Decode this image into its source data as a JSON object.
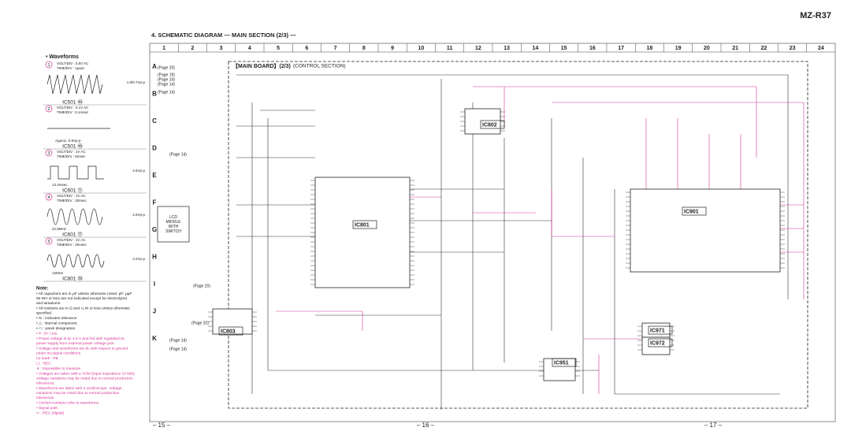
{
  "header": {
    "model": "MZ-R37",
    "title": "4. SCHEMATIC DIAGRAM — MAIN SECTION (2/3) —"
  },
  "board": {
    "title": "【MAIN BOARD】(2/3)",
    "subtitle": "(CONTROL SECTION)"
  },
  "columns": [
    "1",
    "2",
    "3",
    "4",
    "5",
    "6",
    "7",
    "8",
    "9",
    "10",
    "11",
    "12",
    "13",
    "14",
    "15",
    "16",
    "17",
    "18",
    "19",
    "20",
    "21",
    "22",
    "23",
    "24"
  ],
  "rows": [
    "A",
    "B",
    "C",
    "D",
    "E",
    "F",
    "G",
    "H",
    "I",
    "J",
    "K"
  ],
  "waveforms": {
    "title": "• Waveforms",
    "items": [
      {
        "num": "1",
        "volt": "VOLT/DIV : 0.5V AC",
        "time": "TIME/DIV : 1µsec",
        "level": "1.9/0.7Vp-p",
        "ic": "IC501 ㊽"
      },
      {
        "num": "2",
        "volt": "VOLT/DIV : 0.1V AC",
        "time": "TIME/DIV : 0.1msec",
        "level": "Approx. 0.9Vp-p",
        "ic": "IC501 ㊾"
      },
      {
        "num": "3",
        "volt": "VOLT/DIV : 1V AC",
        "time": "TIME/DIV : 5msec",
        "level": "2.6Vp-p",
        "period": "13.4msec",
        "ic": "IC601 ⑪"
      },
      {
        "num": "4",
        "volt": "VOLT/DIV : 1V AC",
        "time": "TIME/DIV : 20nsec",
        "level": "2.6Vp-p",
        "period": "22.5MHz",
        "ic": "IC601 ⑰"
      },
      {
        "num": "5",
        "volt": "VOLT/DIV : 1V AC",
        "time": "TIME/DIV : 20nsec",
        "level": "2.2Vp-p",
        "period": "12MHz",
        "ic": "IC801 ㊿"
      }
    ]
  },
  "notes": {
    "title": "Note:",
    "items": [
      {
        "text": "• All capacitors are in µF unless otherwise noted. pF: µµF 50 WV or less are not indicated except for electrolytics and tantalums.",
        "color": "#222222"
      },
      {
        "text": "• All resistors are in Ω and ¼ W or less unless otherwise specified.",
        "color": "#222222"
      },
      {
        "text": "• % : indicates tolerance.",
        "color": "#222222"
      },
      {
        "text": "• △ : internal component.",
        "color": "#222222"
      },
      {
        "text": "• ▭ : panel designation.",
        "color": "#222222"
      },
      {
        "text": "• ━ : B+ Line.",
        "color": "#d6379a"
      },
      {
        "text": "• Power voltage is dc 4.5 V and fed with regulated dc power supply from external power voltage jack.",
        "color": "#d6379a"
      },
      {
        "text": "• Voltage and waveforms are dc with respect to ground under no-signal conditions.",
        "color": "#d6379a"
      },
      {
        "text": "no mark : PB",
        "color": "#d6379a"
      },
      {
        "text": "( ) : REC",
        "color": "#d6379a"
      },
      {
        "text": "∗ : Impossible to measure",
        "color": "#d6379a"
      },
      {
        "text": "• Voltages are taken with a VOM (Input impedance 10 MΩ). Voltage variations may be noted due to normal production tolerances.",
        "color": "#d6379a"
      },
      {
        "text": "• Waveforms are taken with a oscilloscope. Voltage variations may be noted due to normal production tolerances.",
        "color": "#d6379a"
      },
      {
        "text": "• Circled numbers refer to waveforms.",
        "color": "#d6379a"
      },
      {
        "text": "• Signal path.",
        "color": "#d6379a"
      },
      {
        "text": "⇨ : REC (digital)",
        "color": "#d6379a"
      }
    ]
  },
  "page_refs": [
    "(Page 20)",
    "(Page 19)",
    "(Page 14)",
    "(Page 14)",
    "(Page 14)",
    "(Page 14)",
    "(Page 20)",
    "(Page 20)",
    "(Page 14)",
    "(Page 14)"
  ],
  "ics": [
    "IC801",
    "IC802",
    "IC901",
    "IC803",
    "IC951",
    "IC971",
    "IC972"
  ],
  "lcd": "LCD MIDDLE WITH SWITCH",
  "footer": [
    "– 15 –",
    "– 16 –",
    "– 17 –"
  ]
}
